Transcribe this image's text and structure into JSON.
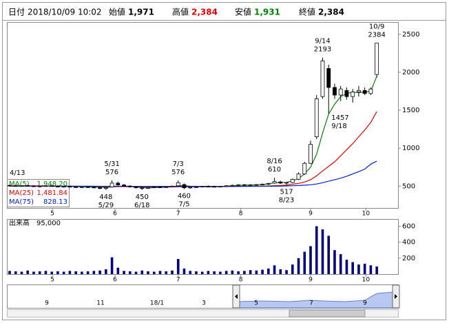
{
  "header": {
    "date_label": "日付",
    "date": "2018/10/09 10:02",
    "open_label": "始値",
    "open": "1,971",
    "high_label": "高値",
    "high": "2,384",
    "low_label": "安値",
    "low": "1,931",
    "close_label": "終値",
    "close": "2,384"
  },
  "chart_data": [
    {
      "type": "candlestick",
      "open": [
        510,
        505,
        500,
        508,
        502,
        495,
        500,
        504,
        498,
        492,
        496,
        490,
        485,
        490,
        486,
        478,
        470,
        490,
        540,
        515,
        500,
        490,
        478,
        470,
        480,
        488,
        485,
        490,
        505,
        520,
        478,
        485,
        490,
        498,
        495,
        492,
        498,
        505,
        510,
        518,
        512,
        515,
        520,
        525,
        540,
        555,
        540,
        548,
        590,
        660,
        800,
        1150,
        1680,
        2050,
        1800,
        1700,
        1760,
        1680,
        1740,
        1760,
        1720,
        1971
      ],
      "high": [
        520,
        515,
        512,
        518,
        510,
        505,
        510,
        514,
        508,
        502,
        506,
        500,
        495,
        500,
        496,
        490,
        485,
        576,
        560,
        528,
        512,
        500,
        488,
        485,
        495,
        498,
        496,
        510,
        576,
        535,
        492,
        498,
        505,
        510,
        505,
        502,
        512,
        520,
        525,
        530,
        525,
        528,
        535,
        545,
        610,
        570,
        555,
        600,
        680,
        820,
        1100,
        1700,
        2193,
        2100,
        1850,
        1820,
        1800,
        1780,
        1820,
        1800,
        1800,
        2384
      ],
      "low": [
        500,
        495,
        492,
        500,
        490,
        485,
        492,
        496,
        488,
        480,
        486,
        480,
        476,
        480,
        472,
        460,
        448,
        485,
        505,
        495,
        480,
        470,
        450,
        462,
        472,
        478,
        475,
        482,
        500,
        460,
        468,
        476,
        482,
        488,
        485,
        482,
        490,
        495,
        500,
        505,
        500,
        505,
        510,
        515,
        530,
        530,
        517,
        540,
        580,
        650,
        790,
        1120,
        1650,
        1457,
        1650,
        1620,
        1640,
        1600,
        1680,
        1700,
        1700,
        1931
      ],
      "close": [
        505,
        500,
        508,
        502,
        495,
        500,
        504,
        498,
        492,
        496,
        490,
        485,
        490,
        486,
        478,
        470,
        480,
        540,
        515,
        500,
        490,
        478,
        470,
        480,
        488,
        485,
        490,
        500,
        545,
        478,
        485,
        490,
        498,
        495,
        492,
        498,
        505,
        510,
        518,
        512,
        515,
        520,
        525,
        535,
        560,
        540,
        548,
        590,
        660,
        800,
        1050,
        1650,
        2150,
        1800,
        1700,
        1780,
        1680,
        1740,
        1760,
        1720,
        1780,
        2384
      ],
      "xticks": [
        {
          "value": 7.1,
          "label": "5"
        },
        {
          "value": 17.5,
          "label": "6"
        },
        {
          "value": 28,
          "label": "7"
        },
        {
          "value": 38.4,
          "label": "8"
        },
        {
          "value": 50,
          "label": "9"
        },
        {
          "value": 59.2,
          "label": "10"
        }
      ],
      "ylim": [
        212,
        2662
      ],
      "yticks": [
        500,
        1000,
        1500,
        2000,
        2500
      ],
      "series": [
        {
          "name": "MA(5)",
          "legend_value": "1,948.20",
          "color": "#008000",
          "values": [
            505,
            504,
            503,
            503,
            502,
            501,
            500,
            499,
            498,
            497,
            495,
            493,
            491,
            490,
            488,
            485,
            482,
            489,
            496,
            500,
            498,
            490,
            480,
            478,
            480,
            484,
            486,
            490,
            505,
            505,
            500,
            498,
            494,
            490,
            494,
            496,
            500,
            505,
            510,
            512,
            515,
            518,
            521,
            530,
            545,
            548,
            550,
            570,
            600,
            660,
            750,
            920,
            1200,
            1450,
            1580,
            1680,
            1720,
            1740,
            1730,
            1740,
            1750,
            1948.2
          ]
        },
        {
          "name": "MA(25)",
          "legend_value": "1,481.84",
          "color": "#e00000",
          "values": [
            505,
            505,
            504,
            504,
            503,
            503,
            502,
            502,
            501,
            500,
            499,
            498,
            497,
            496,
            495,
            494,
            493,
            493,
            493,
            493,
            492,
            492,
            491,
            491,
            490,
            490,
            490,
            490,
            491,
            491,
            491,
            491,
            492,
            492,
            492,
            493,
            494,
            495,
            496,
            497,
            498,
            499,
            500,
            502,
            505,
            508,
            512,
            525,
            535,
            555,
            585,
            635,
            700,
            760,
            820,
            900,
            980,
            1060,
            1150,
            1240,
            1340,
            1481.84
          ]
        },
        {
          "name": "MA(75)",
          "legend_value": "828.13",
          "color": "#0020d0",
          "values": [
            500,
            500,
            500,
            500,
            500,
            500,
            500,
            500,
            500,
            499,
            499,
            499,
            499,
            499,
            499,
            498,
            498,
            498,
            498,
            498,
            498,
            497,
            497,
            497,
            497,
            497,
            497,
            497,
            497,
            497,
            497,
            497,
            497,
            497,
            497,
            497,
            497,
            497,
            497,
            498,
            498,
            498,
            498,
            499,
            499,
            500,
            502,
            505,
            508,
            512,
            518,
            528,
            545,
            565,
            585,
            605,
            630,
            660,
            690,
            725,
            790,
            828.13
          ]
        }
      ],
      "annotations": [
        {
          "date": "4/13"
        },
        {
          "date": "5/31",
          "price": 576
        },
        {
          "date": "5/29",
          "price": 448
        },
        {
          "date": "6/18",
          "price": 450
        },
        {
          "date": "7/3",
          "price": 576
        },
        {
          "date": "7/5",
          "price": 460
        },
        {
          "date": "8/16",
          "price": 610
        },
        {
          "date": "8/23",
          "price": 517
        },
        {
          "date": "9/14",
          "price": 2193
        },
        {
          "date": "9/18",
          "price": 1457
        },
        {
          "date": "10/9",
          "price": 2384
        }
      ]
    },
    {
      "type": "bar",
      "title": "出来高",
      "value_label": "95,000",
      "color": "#000080",
      "values": [
        40,
        35,
        30,
        45,
        30,
        35,
        40,
        30,
        35,
        30,
        40,
        35,
        30,
        35,
        40,
        45,
        60,
        210,
        80,
        40,
        35,
        30,
        45,
        35,
        30,
        40,
        35,
        45,
        190,
        70,
        40,
        35,
        30,
        40,
        35,
        30,
        40,
        45,
        35,
        40,
        50,
        45,
        55,
        70,
        110,
        60,
        50,
        120,
        200,
        280,
        350,
        600,
        560,
        480,
        300,
        250,
        180,
        150,
        120,
        130,
        110,
        95
      ],
      "ylim": [
        0,
        690
      ],
      "yticks": [
        200,
        400,
        600
      ]
    }
  ],
  "navigator": {
    "labels": [
      "9",
      "11",
      "18/1",
      "3",
      "5",
      "7",
      "9"
    ]
  }
}
